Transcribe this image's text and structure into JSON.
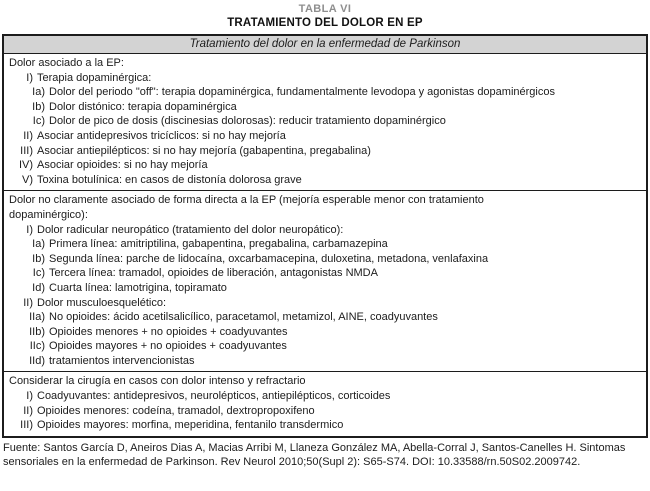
{
  "title": {
    "table_label": "TABLA VI",
    "table_title": "TRATAMIENTO DEL DOLOR EN EP"
  },
  "table": {
    "header": "Tratamiento del dolor en la enfermedad de Parkinson",
    "sections": [
      {
        "rows": [
          {
            "level": 0,
            "num": "",
            "text": "Dolor asociado a la EP:"
          },
          {
            "level": 1,
            "num": "I)",
            "text": "Terapia dopaminérgica:"
          },
          {
            "level": 2,
            "num": "Ia)",
            "text": "Dolor del periodo \"off\": terapia dopaminérgica, fundamentalmente levodopa y agonistas dopaminérgicos"
          },
          {
            "level": 2,
            "num": "Ib)",
            "text": "Dolor distónico: terapia dopaminérgica"
          },
          {
            "level": 2,
            "num": "Ic)",
            "text": "Dolor de pico de dosis (discinesias dolorosas): reducir tratamiento dopaminérgico"
          },
          {
            "level": 1,
            "num": "II)",
            "text": "Asociar antidepresivos tricíclicos: si no hay mejoría"
          },
          {
            "level": 1,
            "num": "III)",
            "text": "Asociar antiepilépticos: si no hay mejoría (gabapentina, pregabalina)"
          },
          {
            "level": 1,
            "num": "IV)",
            "text": "Asociar opioides: si no hay mejoría"
          },
          {
            "level": 1,
            "num": "V)",
            "text": "Toxina botulínica: en casos de distonía dolorosa grave"
          }
        ]
      },
      {
        "rows": [
          {
            "level": 0,
            "num": "",
            "text": "Dolor no claramente asociado de forma directa a la EP (mejoría esperable menor con tratamiento"
          },
          {
            "level": 0,
            "num": "",
            "text": "dopaminérgico):"
          },
          {
            "level": 1,
            "num": "I)",
            "text": "Dolor radicular neuropático (tratamiento del dolor neuropático):"
          },
          {
            "level": 2,
            "num": "Ia)",
            "text": "Primera línea: amitriptilina, gabapentina, pregabalina, carbamazepina"
          },
          {
            "level": 2,
            "num": "Ib)",
            "text": "Segunda línea: parche de lidocaína, oxcarbamacepina, duloxetina, metadona, venlafaxina"
          },
          {
            "level": 2,
            "num": "Ic)",
            "text": "Tercera línea: tramadol, opioides de liberación, antagonistas NMDA"
          },
          {
            "level": 2,
            "num": "Id)",
            "text": "Cuarta línea: lamotrigina, topiramato"
          },
          {
            "level": 1,
            "num": "II)",
            "text": "Dolor musculoesquelético:"
          },
          {
            "level": 2,
            "num": "IIa)",
            "text": "No opioides: ácido acetilsalicílico, paracetamol, metamizol, AINE, coadyuvantes"
          },
          {
            "level": 2,
            "num": "IIb)",
            "text": "Opioides menores + no opioides + coadyuvantes"
          },
          {
            "level": 2,
            "num": "IIc)",
            "text": "Opioides mayores + no opioides + coadyuvantes"
          },
          {
            "level": 2,
            "num": "IId)",
            "text": "tratamientos intervencionistas"
          }
        ]
      },
      {
        "rows": [
          {
            "level": 0,
            "num": "",
            "text": "Considerar la cirugía en casos con dolor intenso y refractario"
          },
          {
            "level": 1,
            "num": "I)",
            "text": "Coadyuvantes: antidepresivos, neurolépticos, antiepilépticos, corticoides"
          },
          {
            "level": 1,
            "num": "II)",
            "text": "Opioides menores: codeína, tramadol, dextropropoxifeno"
          },
          {
            "level": 1,
            "num": "III)",
            "text": "Opioides mayores: morfina, meperidina, fentanilo transdermico"
          }
        ]
      }
    ]
  },
  "footer": {
    "text": "Fuente: Santos García D, Aneiros Dias A, Macias Arribi M, Llaneza González MA, Abella-Corral J, Santos-Canelles H. Sintomas sensoriales en la enfermedad de Parkinson. Rev Neurol 2010;50(Supl 2): S65-S74. DOI: 10.33588/rn.50S02.2009742."
  },
  "colors": {
    "header_bg": "#d3d3d3",
    "title_gray": "#8f8f8f",
    "text": "#1c1c1c",
    "border": "#1c1c1c"
  }
}
